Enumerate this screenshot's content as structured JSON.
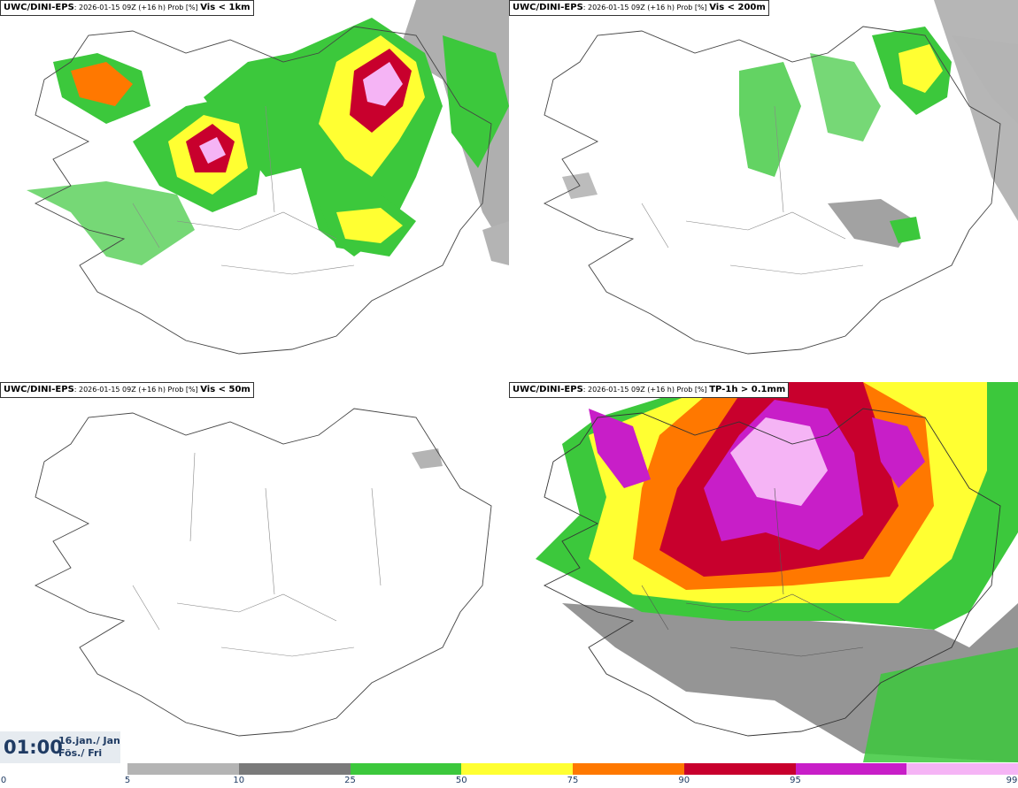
{
  "panels": [
    {
      "model": "UWC/DINI-EPS",
      "meta": ": 2026-01-15 09Z (+16 h) Prob [%] ",
      "variable": "Vis < 1km"
    },
    {
      "model": "UWC/DINI-EPS",
      "meta": ": 2026-01-15 09Z (+16 h) Prob [%] ",
      "variable": "Vis < 200m"
    },
    {
      "model": "UWC/DINI-EPS",
      "meta": ": 2026-01-15 09Z (+16 h) Prob [%] ",
      "variable": "Vis < 50m"
    },
    {
      "model": "UWC/DINI-EPS",
      "meta": ": 2026-01-15 09Z (+16 h) Prob [%] ",
      "variable": "TP-1h > 0.1mm"
    }
  ],
  "valid_time": {
    "time": "01:00",
    "date_line1": "16.jan./ Jan",
    "date_line2": "Fös./ Fri"
  },
  "legend": {
    "ticks": [
      "0",
      "5",
      "10",
      "25",
      "50",
      "75",
      "90",
      "95",
      "99"
    ],
    "colors": [
      "#b4b4b4",
      "#7a7a7a",
      "#3cc83c",
      "#ffff32",
      "#ff7800",
      "#c8002d",
      "#c81ec8",
      "#f5b4f5"
    ]
  }
}
